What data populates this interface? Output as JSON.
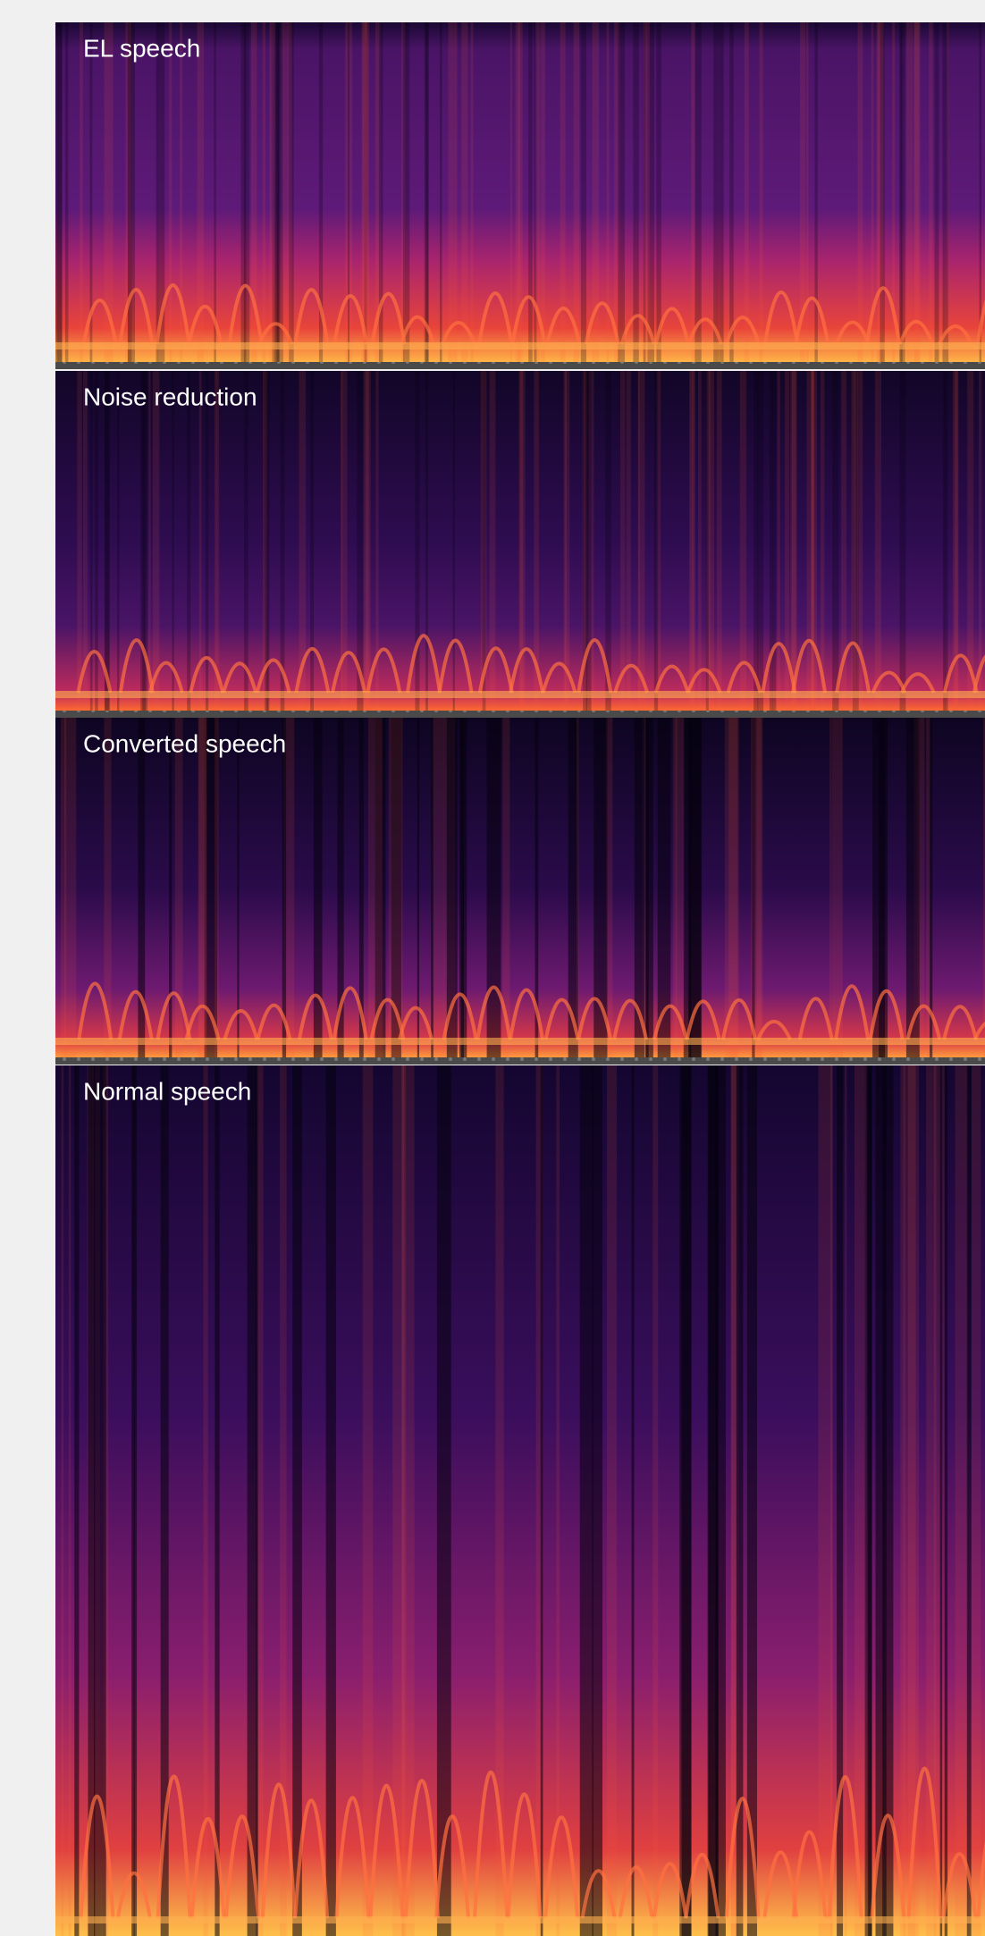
{
  "panels": [
    {
      "label": "EL speech"
    },
    {
      "label": "Noise reduction"
    },
    {
      "label": "Converted speech"
    },
    {
      "label": "Normal speech"
    }
  ]
}
